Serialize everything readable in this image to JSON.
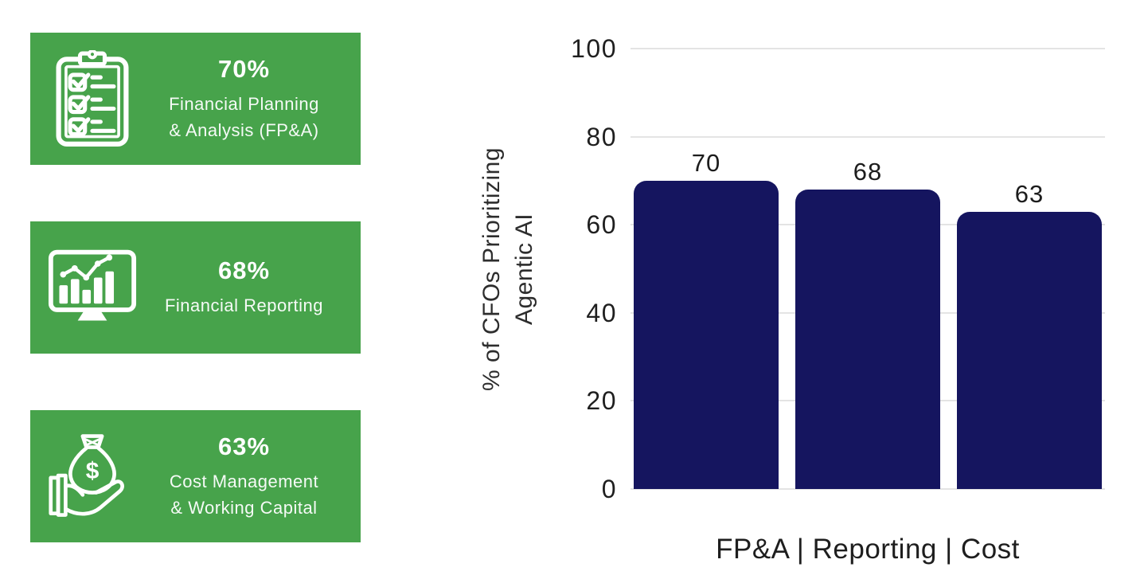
{
  "infographic": {
    "card_color": "#47a34b",
    "icon_color": "#ffffff",
    "text_color": "#ffffff",
    "cards": [
      {
        "icon": "clipboard-checklist-icon",
        "value": "70%",
        "label_lines": [
          "Financial Planning",
          "& Analysis (FP&A)"
        ]
      },
      {
        "icon": "monitor-chart-icon",
        "value": "68%",
        "label_lines": [
          "Financial Reporting"
        ]
      },
      {
        "icon": "money-bag-hand-icon",
        "value": "63%",
        "label_lines": [
          "Cost Management",
          "& Working Capital"
        ]
      }
    ]
  },
  "chart_data": {
    "type": "bar",
    "categories": [
      "FP&A",
      "Reporting",
      "Cost"
    ],
    "values": [
      70,
      68,
      63
    ],
    "bar_labels": [
      "70",
      "68",
      "63"
    ],
    "title": "",
    "xlabel": "FP&A | Reporting | Cost",
    "ylabel": "% of CFOs Prioritizing Agentic AI",
    "ylabel_lines": [
      "% of CFOs Prioritizing",
      "Agentic AI"
    ],
    "ylim": [
      0,
      100
    ],
    "yticks": [
      100,
      80,
      60,
      40,
      20,
      0
    ],
    "grid": true,
    "legend": false,
    "bar_color": "#15155f",
    "gridline_color": "#e4e4e4",
    "axis_text_color": "#1f1f1f"
  }
}
